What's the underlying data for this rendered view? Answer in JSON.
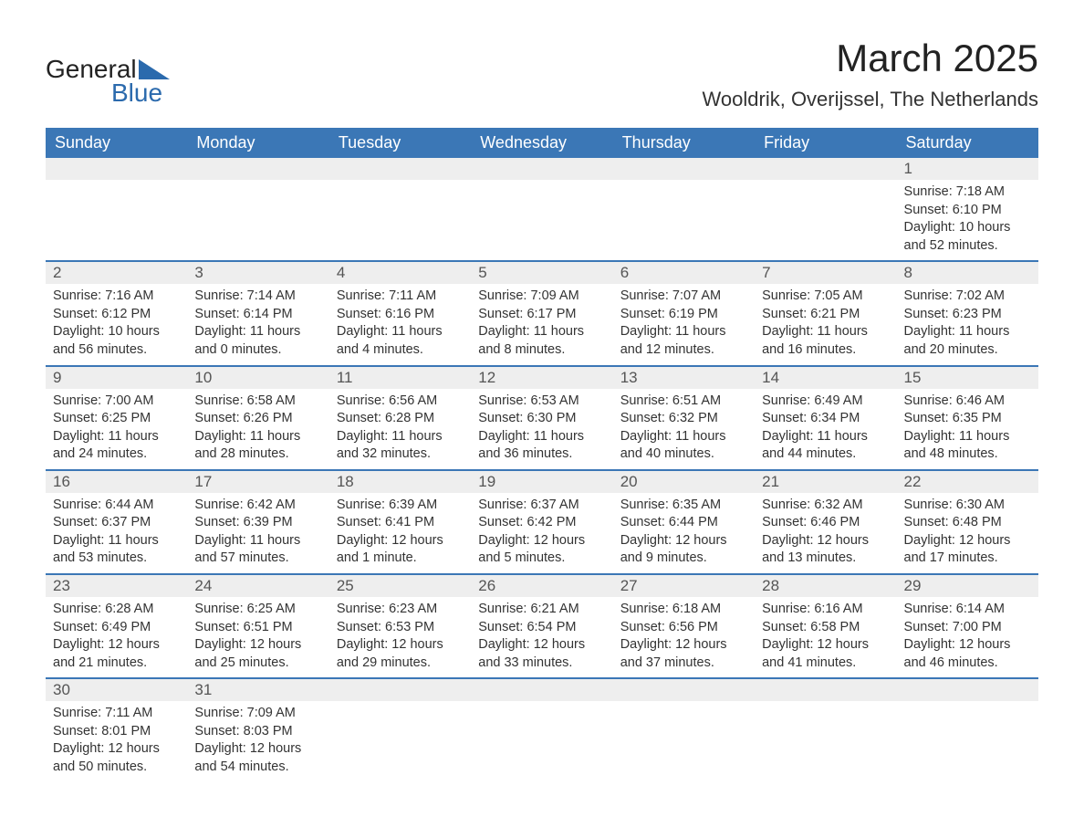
{
  "logo": {
    "text_general": "General",
    "text_blue": "Blue",
    "triangle_color": "#2b6aad"
  },
  "header": {
    "month_title": "March 2025",
    "location": "Wooldrik, Overijssel, The Netherlands"
  },
  "colors": {
    "header_bg": "#3b77b6",
    "header_text": "#ffffff",
    "daynum_bg": "#eeeeee",
    "row_border": "#3b77b6",
    "body_text": "#333333",
    "logo_blue": "#2b6aad"
  },
  "weekdays": [
    "Sunday",
    "Monday",
    "Tuesday",
    "Wednesday",
    "Thursday",
    "Friday",
    "Saturday"
  ],
  "weeks": [
    [
      {
        "empty": true
      },
      {
        "empty": true
      },
      {
        "empty": true
      },
      {
        "empty": true
      },
      {
        "empty": true
      },
      {
        "empty": true
      },
      {
        "day": "1",
        "sunrise": "Sunrise: 7:18 AM",
        "sunset": "Sunset: 6:10 PM",
        "daylight": "Daylight: 10 hours and 52 minutes."
      }
    ],
    [
      {
        "day": "2",
        "sunrise": "Sunrise: 7:16 AM",
        "sunset": "Sunset: 6:12 PM",
        "daylight": "Daylight: 10 hours and 56 minutes."
      },
      {
        "day": "3",
        "sunrise": "Sunrise: 7:14 AM",
        "sunset": "Sunset: 6:14 PM",
        "daylight": "Daylight: 11 hours and 0 minutes."
      },
      {
        "day": "4",
        "sunrise": "Sunrise: 7:11 AM",
        "sunset": "Sunset: 6:16 PM",
        "daylight": "Daylight: 11 hours and 4 minutes."
      },
      {
        "day": "5",
        "sunrise": "Sunrise: 7:09 AM",
        "sunset": "Sunset: 6:17 PM",
        "daylight": "Daylight: 11 hours and 8 minutes."
      },
      {
        "day": "6",
        "sunrise": "Sunrise: 7:07 AM",
        "sunset": "Sunset: 6:19 PM",
        "daylight": "Daylight: 11 hours and 12 minutes."
      },
      {
        "day": "7",
        "sunrise": "Sunrise: 7:05 AM",
        "sunset": "Sunset: 6:21 PM",
        "daylight": "Daylight: 11 hours and 16 minutes."
      },
      {
        "day": "8",
        "sunrise": "Sunrise: 7:02 AM",
        "sunset": "Sunset: 6:23 PM",
        "daylight": "Daylight: 11 hours and 20 minutes."
      }
    ],
    [
      {
        "day": "9",
        "sunrise": "Sunrise: 7:00 AM",
        "sunset": "Sunset: 6:25 PM",
        "daylight": "Daylight: 11 hours and 24 minutes."
      },
      {
        "day": "10",
        "sunrise": "Sunrise: 6:58 AM",
        "sunset": "Sunset: 6:26 PM",
        "daylight": "Daylight: 11 hours and 28 minutes."
      },
      {
        "day": "11",
        "sunrise": "Sunrise: 6:56 AM",
        "sunset": "Sunset: 6:28 PM",
        "daylight": "Daylight: 11 hours and 32 minutes."
      },
      {
        "day": "12",
        "sunrise": "Sunrise: 6:53 AM",
        "sunset": "Sunset: 6:30 PM",
        "daylight": "Daylight: 11 hours and 36 minutes."
      },
      {
        "day": "13",
        "sunrise": "Sunrise: 6:51 AM",
        "sunset": "Sunset: 6:32 PM",
        "daylight": "Daylight: 11 hours and 40 minutes."
      },
      {
        "day": "14",
        "sunrise": "Sunrise: 6:49 AM",
        "sunset": "Sunset: 6:34 PM",
        "daylight": "Daylight: 11 hours and 44 minutes."
      },
      {
        "day": "15",
        "sunrise": "Sunrise: 6:46 AM",
        "sunset": "Sunset: 6:35 PM",
        "daylight": "Daylight: 11 hours and 48 minutes."
      }
    ],
    [
      {
        "day": "16",
        "sunrise": "Sunrise: 6:44 AM",
        "sunset": "Sunset: 6:37 PM",
        "daylight": "Daylight: 11 hours and 53 minutes."
      },
      {
        "day": "17",
        "sunrise": "Sunrise: 6:42 AM",
        "sunset": "Sunset: 6:39 PM",
        "daylight": "Daylight: 11 hours and 57 minutes."
      },
      {
        "day": "18",
        "sunrise": "Sunrise: 6:39 AM",
        "sunset": "Sunset: 6:41 PM",
        "daylight": "Daylight: 12 hours and 1 minute."
      },
      {
        "day": "19",
        "sunrise": "Sunrise: 6:37 AM",
        "sunset": "Sunset: 6:42 PM",
        "daylight": "Daylight: 12 hours and 5 minutes."
      },
      {
        "day": "20",
        "sunrise": "Sunrise: 6:35 AM",
        "sunset": "Sunset: 6:44 PM",
        "daylight": "Daylight: 12 hours and 9 minutes."
      },
      {
        "day": "21",
        "sunrise": "Sunrise: 6:32 AM",
        "sunset": "Sunset: 6:46 PM",
        "daylight": "Daylight: 12 hours and 13 minutes."
      },
      {
        "day": "22",
        "sunrise": "Sunrise: 6:30 AM",
        "sunset": "Sunset: 6:48 PM",
        "daylight": "Daylight: 12 hours and 17 minutes."
      }
    ],
    [
      {
        "day": "23",
        "sunrise": "Sunrise: 6:28 AM",
        "sunset": "Sunset: 6:49 PM",
        "daylight": "Daylight: 12 hours and 21 minutes."
      },
      {
        "day": "24",
        "sunrise": "Sunrise: 6:25 AM",
        "sunset": "Sunset: 6:51 PM",
        "daylight": "Daylight: 12 hours and 25 minutes."
      },
      {
        "day": "25",
        "sunrise": "Sunrise: 6:23 AM",
        "sunset": "Sunset: 6:53 PM",
        "daylight": "Daylight: 12 hours and 29 minutes."
      },
      {
        "day": "26",
        "sunrise": "Sunrise: 6:21 AM",
        "sunset": "Sunset: 6:54 PM",
        "daylight": "Daylight: 12 hours and 33 minutes."
      },
      {
        "day": "27",
        "sunrise": "Sunrise: 6:18 AM",
        "sunset": "Sunset: 6:56 PM",
        "daylight": "Daylight: 12 hours and 37 minutes."
      },
      {
        "day": "28",
        "sunrise": "Sunrise: 6:16 AM",
        "sunset": "Sunset: 6:58 PM",
        "daylight": "Daylight: 12 hours and 41 minutes."
      },
      {
        "day": "29",
        "sunrise": "Sunrise: 6:14 AM",
        "sunset": "Sunset: 7:00 PM",
        "daylight": "Daylight: 12 hours and 46 minutes."
      }
    ],
    [
      {
        "day": "30",
        "sunrise": "Sunrise: 7:11 AM",
        "sunset": "Sunset: 8:01 PM",
        "daylight": "Daylight: 12 hours and 50 minutes."
      },
      {
        "day": "31",
        "sunrise": "Sunrise: 7:09 AM",
        "sunset": "Sunset: 8:03 PM",
        "daylight": "Daylight: 12 hours and 54 minutes."
      },
      {
        "empty": true
      },
      {
        "empty": true
      },
      {
        "empty": true
      },
      {
        "empty": true
      },
      {
        "empty": true
      }
    ]
  ]
}
